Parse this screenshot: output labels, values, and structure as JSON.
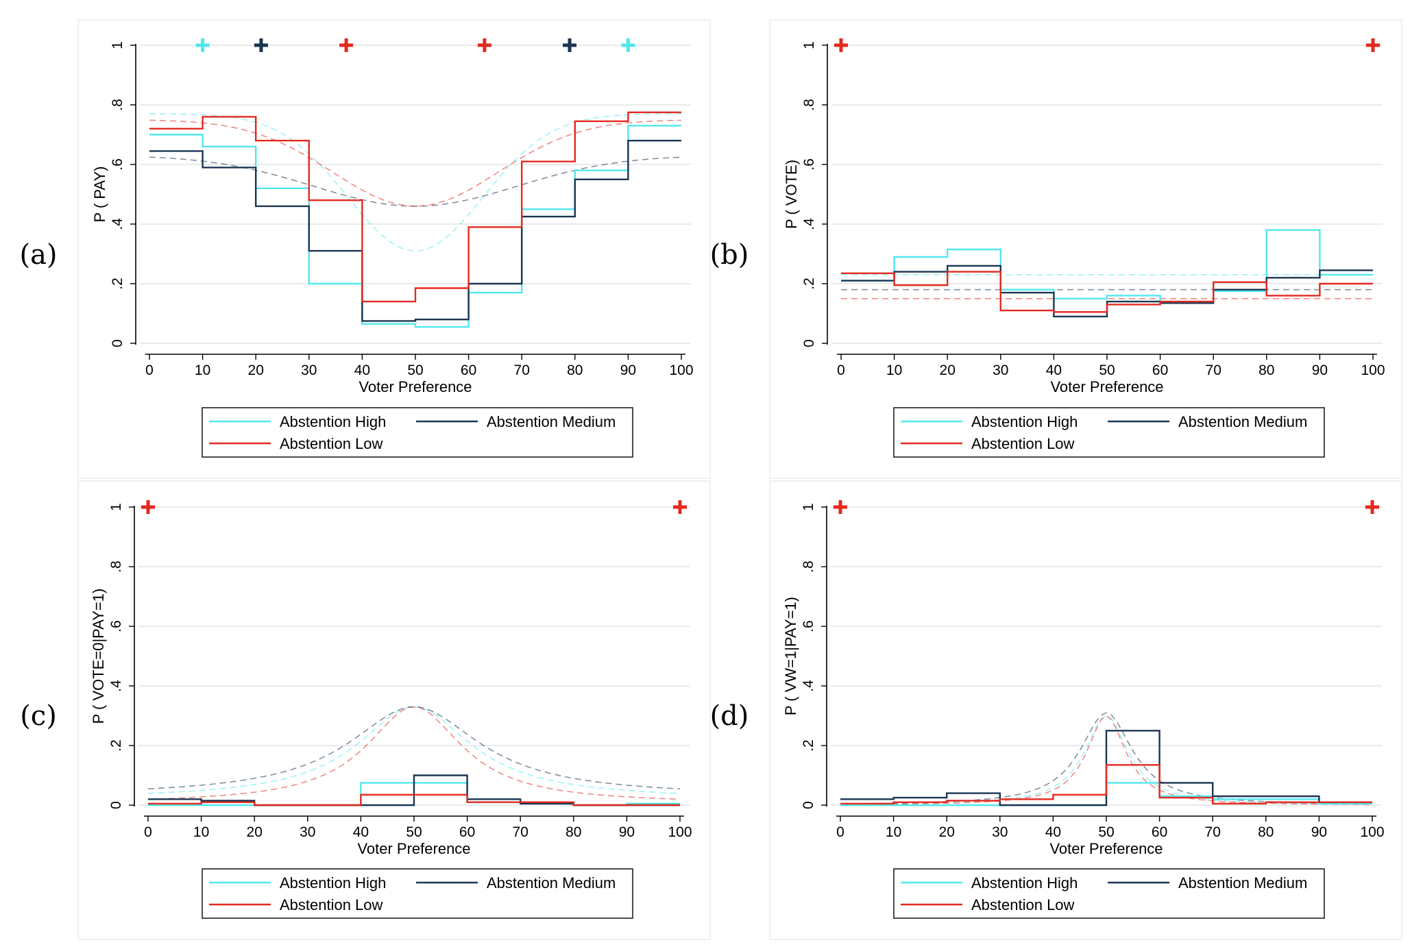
{
  "colors": {
    "high": "#4fe8ee",
    "medium": "#1a3552",
    "low": "#e3291f"
  },
  "panel_labels": [
    "(a)",
    "(b)",
    "(c)",
    "(d)"
  ],
  "chart_data": [
    {
      "type": "line",
      "panel": "(a)",
      "xlabel": "Voter Preference",
      "ylabel": "P ( PAY)",
      "xlim": [
        0,
        100
      ],
      "ylim": [
        0,
        1
      ],
      "xticks": [
        0,
        10,
        20,
        30,
        40,
        50,
        60,
        70,
        80,
        90,
        100
      ],
      "xtick_labels": [
        "0",
        "10",
        "20",
        "30",
        "40",
        "50",
        "60",
        "70",
        "80",
        "90",
        "100"
      ],
      "yticks": [
        0,
        0.2,
        0.4,
        0.6,
        0.8,
        1
      ],
      "ytick_labels": [
        "0",
        ".2",
        ".4",
        ".6",
        ".8",
        "1"
      ],
      "grid": true,
      "legend": {
        "position": "bottom",
        "entries": [
          "Abstention High",
          "Abstention Medium",
          "Abstention Low"
        ]
      },
      "bin_edges": [
        0,
        10,
        20,
        30,
        40,
        50,
        60,
        70,
        80,
        90,
        100
      ],
      "series": [
        {
          "name": "Abstention High",
          "color_key": "high",
          "step": [
            0.7,
            0.66,
            0.52,
            0.2,
            0.065,
            0.055,
            0.17,
            0.45,
            0.58,
            0.73
          ],
          "fit_mean": 50,
          "fit_min": 0.31,
          "fit_max": 0.77,
          "fit_width": 18
        },
        {
          "name": "Abstention Medium",
          "color_key": "medium",
          "step": [
            0.645,
            0.59,
            0.46,
            0.31,
            0.075,
            0.08,
            0.2,
            0.425,
            0.55,
            0.68
          ],
          "fit_mean": 50,
          "fit_min": 0.46,
          "fit_max": 0.63,
          "fit_width": 27
        },
        {
          "name": "Abstention Low",
          "color_key": "low",
          "step": [
            0.72,
            0.76,
            0.68,
            0.48,
            0.14,
            0.185,
            0.39,
            0.61,
            0.745,
            0.775
          ],
          "fit_mean": 50,
          "fit_min": 0.46,
          "fit_max": 0.75,
          "fit_width": 22
        }
      ],
      "markers": [
        {
          "x": 10,
          "y": 1,
          "color_key": "high"
        },
        {
          "x": 21,
          "y": 1,
          "color_key": "medium"
        },
        {
          "x": 37,
          "y": 1,
          "color_key": "low"
        },
        {
          "x": 63,
          "y": 1,
          "color_key": "low"
        },
        {
          "x": 79,
          "y": 1,
          "color_key": "medium"
        },
        {
          "x": 90,
          "y": 1,
          "color_key": "high"
        }
      ]
    },
    {
      "type": "line",
      "panel": "(b)",
      "xlabel": "Voter Preference",
      "ylabel": "P ( VOTE)",
      "xlim": [
        0,
        100
      ],
      "ylim": [
        0,
        1
      ],
      "xticks": [
        0,
        10,
        20,
        30,
        40,
        50,
        60,
        70,
        80,
        90,
        100
      ],
      "xtick_labels": [
        "0",
        "10",
        "20",
        "30",
        "40",
        "50",
        "60",
        "70",
        "80",
        "90",
        "100"
      ],
      "yticks": [
        0,
        0.2,
        0.4,
        0.6,
        0.8,
        1
      ],
      "ytick_labels": [
        "0",
        ".2",
        ".4",
        ".6",
        ".8",
        "1"
      ],
      "grid": true,
      "legend": {
        "position": "bottom",
        "entries": [
          "Abstention High",
          "Abstention Medium",
          "Abstention Low"
        ]
      },
      "bin_edges": [
        0,
        10,
        20,
        30,
        40,
        50,
        60,
        70,
        80,
        90,
        100
      ],
      "series": [
        {
          "name": "Abstention High",
          "color_key": "high",
          "step": [
            0.21,
            0.29,
            0.315,
            0.18,
            0.15,
            0.16,
            0.14,
            0.175,
            0.38,
            0.23
          ],
          "flat": 0.23
        },
        {
          "name": "Abstention Medium",
          "color_key": "medium",
          "step": [
            0.21,
            0.24,
            0.26,
            0.17,
            0.09,
            0.14,
            0.135,
            0.18,
            0.22,
            0.245
          ],
          "flat": 0.18
        },
        {
          "name": "Abstention Low",
          "color_key": "low",
          "step": [
            0.235,
            0.195,
            0.24,
            0.11,
            0.105,
            0.13,
            0.14,
            0.205,
            0.16,
            0.2
          ],
          "flat": 0.15
        }
      ],
      "markers": [
        {
          "x": 0,
          "y": 1,
          "color_key": "low"
        },
        {
          "x": 100,
          "y": 1,
          "color_key": "low"
        }
      ]
    },
    {
      "type": "line",
      "panel": "(c)",
      "xlabel": "Voter Preference",
      "ylabel": "P ( VOTE=0|PAY=1)",
      "xlim": [
        0,
        100
      ],
      "ylim": [
        0,
        1
      ],
      "xticks": [
        0,
        10,
        20,
        30,
        40,
        50,
        60,
        70,
        80,
        90,
        100
      ],
      "xtick_labels": [
        "0",
        "10",
        "20",
        "30",
        "40",
        "50",
        "60",
        "70",
        "80",
        "90",
        "100"
      ],
      "yticks": [
        0,
        0.2,
        0.4,
        0.6,
        0.8,
        1
      ],
      "ytick_labels": [
        "0",
        ".2",
        ".4",
        ".6",
        ".8",
        "1"
      ],
      "grid": true,
      "legend": {
        "position": "bottom",
        "entries": [
          "Abstention High",
          "Abstention Medium",
          "Abstention Low"
        ]
      },
      "bin_edges": [
        0,
        10,
        20,
        30,
        40,
        50,
        60,
        70,
        80,
        90,
        100
      ],
      "series": [
        {
          "name": "Abstention High",
          "color_key": "high",
          "step": [
            0.0,
            0.0,
            0.0,
            0.0,
            0.075,
            0.075,
            0.01,
            0.005,
            0.0,
            0.005
          ],
          "peak": 0.33,
          "base": 0.02,
          "width": 13
        },
        {
          "name": "Abstention Medium",
          "color_key": "medium",
          "step": [
            0.02,
            0.015,
            0.0,
            0.0,
            0.0,
            0.1,
            0.02,
            0.005,
            0.0,
            0.0
          ],
          "peak": 0.33,
          "base": 0.03,
          "width": 15
        },
        {
          "name": "Abstention Low",
          "color_key": "low",
          "step": [
            0.005,
            0.01,
            0.0,
            0.0,
            0.035,
            0.035,
            0.01,
            0.01,
            0.0,
            0.0
          ],
          "peak": 0.33,
          "base": 0.005,
          "width": 11
        }
      ],
      "markers": [
        {
          "x": 0,
          "y": 1,
          "color_key": "low"
        },
        {
          "x": 100,
          "y": 1,
          "color_key": "low"
        }
      ]
    },
    {
      "type": "line",
      "panel": "(d)",
      "xlabel": "Voter Preference",
      "ylabel": "P ( VW=1|PAY=1)",
      "xlim": [
        0,
        100
      ],
      "ylim": [
        0,
        1
      ],
      "xticks": [
        0,
        10,
        20,
        30,
        40,
        50,
        60,
        70,
        80,
        90,
        100
      ],
      "xtick_labels": [
        "0",
        "10",
        "20",
        "30",
        "40",
        "50",
        "60",
        "70",
        "80",
        "90",
        "100"
      ],
      "yticks": [
        0,
        0.2,
        0.4,
        0.6,
        0.8,
        1
      ],
      "ytick_labels": [
        "0",
        ".2",
        ".4",
        ".6",
        ".8",
        "1"
      ],
      "grid": true,
      "legend": {
        "position": "bottom",
        "entries": [
          "Abstention High",
          "Abstention Medium",
          "Abstention Low"
        ]
      },
      "bin_edges": [
        0,
        10,
        20,
        30,
        40,
        50,
        60,
        70,
        80,
        90,
        100
      ],
      "series": [
        {
          "name": "Abstention High",
          "color_key": "high",
          "step": [
            0.0,
            0.0,
            0.0,
            0.0,
            0.0,
            0.075,
            0.03,
            0.02,
            0.02,
            0.005
          ],
          "peak": 0.3,
          "base": 0.0,
          "width": 5
        },
        {
          "name": "Abstention Medium",
          "color_key": "medium",
          "step": [
            0.02,
            0.025,
            0.04,
            0.0,
            0.0,
            0.25,
            0.075,
            0.03,
            0.03,
            0.01
          ],
          "peak": 0.31,
          "base": 0.0,
          "width": 6
        },
        {
          "name": "Abstention Low",
          "color_key": "low",
          "step": [
            0.005,
            0.01,
            0.015,
            0.02,
            0.035,
            0.135,
            0.025,
            0.005,
            0.01,
            0.01
          ],
          "peak": 0.3,
          "base": 0.0,
          "width": 4.5
        }
      ],
      "markers": [
        {
          "x": 0,
          "y": 1,
          "color_key": "low"
        },
        {
          "x": 100,
          "y": 1,
          "color_key": "low"
        }
      ]
    }
  ]
}
